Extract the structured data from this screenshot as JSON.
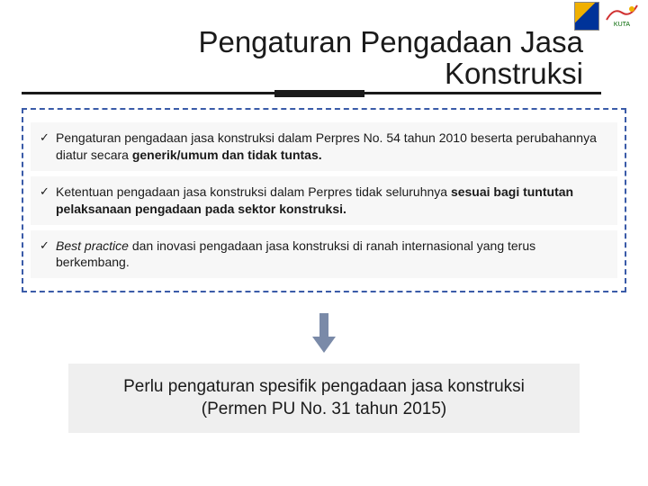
{
  "title": {
    "line1": "Pengaturan Pengadaan Jasa",
    "line2": "Konstruksi",
    "fontsize": 33,
    "color": "#1a1a1a",
    "underline_color": "#1a1a1a"
  },
  "logos": {
    "pu": {
      "name": "pu-logo",
      "colors": [
        "#f0b000",
        "#003399"
      ]
    },
    "kuta": {
      "name": "kuta-logo",
      "label": "KUTA"
    }
  },
  "box": {
    "border_color": "#3a5ba8",
    "border_style": "dashed",
    "item_bg": "#f7f7f7",
    "items": [
      {
        "segments": [
          {
            "text": "Pengaturan pengadaan jasa konstruksi dalam Perpres No. 54 tahun 2010 beserta perubahannya diatur secara ",
            "style": ""
          },
          {
            "text": "generik/umum dan tidak tuntas.",
            "style": "bold"
          }
        ]
      },
      {
        "segments": [
          {
            "text": "Ketentuan pengadaan jasa konstruksi dalam Perpres tidak seluruhnya ",
            "style": ""
          },
          {
            "text": "sesuai bagi tuntutan pelaksanaan pengadaan pada sektor konstruksi.",
            "style": "bold"
          }
        ]
      },
      {
        "segments": [
          {
            "text": "Best practice ",
            "style": "italic"
          },
          {
            "text": "dan inovasi pengadaan jasa konstruksi di ranah internasional yang terus berkembang.",
            "style": ""
          }
        ]
      }
    ]
  },
  "arrow": {
    "color": "#7a8aa8",
    "width": 26,
    "height": 44
  },
  "conclusion": {
    "line1": "Perlu pengaturan spesifik pengadaan jasa konstruksi",
    "line2": "(Permen PU No. 31 tahun 2015)",
    "bg": "#efefef",
    "fontsize": 19
  }
}
